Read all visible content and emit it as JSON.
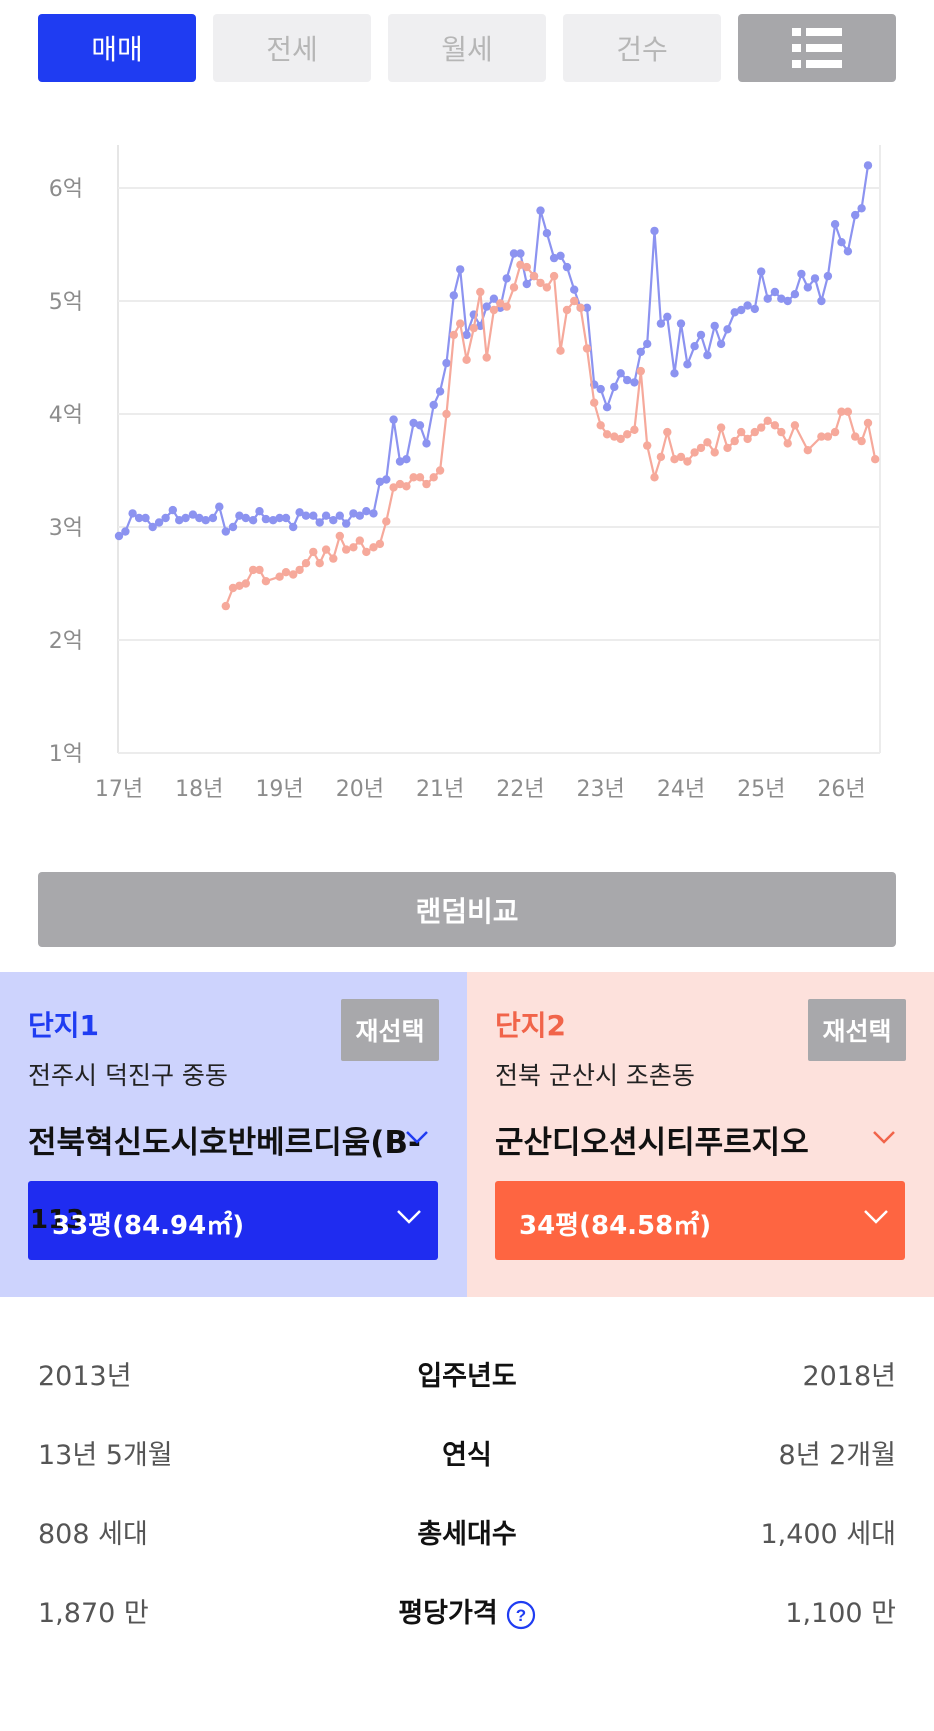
{
  "tabs": [
    {
      "label": "매매",
      "active": true
    },
    {
      "label": "전세",
      "active": false
    },
    {
      "label": "월세",
      "active": false
    },
    {
      "label": "건수",
      "active": false
    }
  ],
  "list_icon": "list-view-icon",
  "chart_data": {
    "type": "line",
    "title": "",
    "xlabel": "",
    "ylabel": "",
    "y_tick_labels": [
      "6억",
      "5억",
      "4억",
      "3억",
      "2억",
      "1억"
    ],
    "x_tick_labels": [
      "17년",
      "18년",
      "19년",
      "20년",
      "21년",
      "22년",
      "23년",
      "24년",
      "25년",
      "26년"
    ],
    "ylim": [
      1,
      6.2
    ],
    "grid": true,
    "series": [
      {
        "color": "#8c93f0",
        "points": [
          [
            17.0,
            2.92
          ],
          [
            17.08,
            2.96
          ],
          [
            17.17,
            3.12
          ],
          [
            17.25,
            3.08
          ],
          [
            17.33,
            3.08
          ],
          [
            17.42,
            3.0
          ],
          [
            17.5,
            3.04
          ],
          [
            17.58,
            3.08
          ],
          [
            17.67,
            3.15
          ],
          [
            17.75,
            3.06
          ],
          [
            17.83,
            3.08
          ],
          [
            17.92,
            3.11
          ],
          [
            18.0,
            3.08
          ],
          [
            18.08,
            3.06
          ],
          [
            18.17,
            3.08
          ],
          [
            18.25,
            3.18
          ],
          [
            18.33,
            2.96
          ],
          [
            18.42,
            3.0
          ],
          [
            18.5,
            3.1
          ],
          [
            18.58,
            3.08
          ],
          [
            18.67,
            3.06
          ],
          [
            18.75,
            3.14
          ],
          [
            18.83,
            3.07
          ],
          [
            18.92,
            3.06
          ],
          [
            19.0,
            3.08
          ],
          [
            19.08,
            3.08
          ],
          [
            19.17,
            3.0
          ],
          [
            19.25,
            3.13
          ],
          [
            19.33,
            3.1
          ],
          [
            19.42,
            3.1
          ],
          [
            19.5,
            3.04
          ],
          [
            19.58,
            3.1
          ],
          [
            19.67,
            3.06
          ],
          [
            19.75,
            3.1
          ],
          [
            19.83,
            3.03
          ],
          [
            19.92,
            3.12
          ],
          [
            20.0,
            3.1
          ],
          [
            20.08,
            3.14
          ],
          [
            20.17,
            3.12
          ],
          [
            20.25,
            3.4
          ],
          [
            20.33,
            3.42
          ],
          [
            20.42,
            3.95
          ],
          [
            20.5,
            3.58
          ],
          [
            20.58,
            3.6
          ],
          [
            20.67,
            3.92
          ],
          [
            20.75,
            3.9
          ],
          [
            20.83,
            3.74
          ],
          [
            20.92,
            4.08
          ],
          [
            21.0,
            4.2
          ],
          [
            21.08,
            4.45
          ],
          [
            21.17,
            5.05
          ],
          [
            21.25,
            5.28
          ],
          [
            21.33,
            4.7
          ],
          [
            21.42,
            4.88
          ],
          [
            21.5,
            4.78
          ],
          [
            21.58,
            4.95
          ],
          [
            21.67,
            5.02
          ],
          [
            21.75,
            4.94
          ],
          [
            21.83,
            5.2
          ],
          [
            21.92,
            5.42
          ],
          [
            22.0,
            5.42
          ],
          [
            22.08,
            5.15
          ],
          [
            22.17,
            5.22
          ],
          [
            22.25,
            5.8
          ],
          [
            22.33,
            5.6
          ],
          [
            22.42,
            5.38
          ],
          [
            22.5,
            5.4
          ],
          [
            22.58,
            5.3
          ],
          [
            22.67,
            5.1
          ],
          [
            22.75,
            4.94
          ],
          [
            22.83,
            4.94
          ],
          [
            22.92,
            4.26
          ],
          [
            23.0,
            4.22
          ],
          [
            23.08,
            4.06
          ],
          [
            23.17,
            4.24
          ],
          [
            23.25,
            4.36
          ],
          [
            23.33,
            4.3
          ],
          [
            23.42,
            4.28
          ],
          [
            23.5,
            4.55
          ],
          [
            23.58,
            4.62
          ],
          [
            23.67,
            5.62
          ],
          [
            23.75,
            4.8
          ],
          [
            23.83,
            4.86
          ],
          [
            23.92,
            4.36
          ],
          [
            24.0,
            4.8
          ],
          [
            24.08,
            4.44
          ],
          [
            24.17,
            4.6
          ],
          [
            24.25,
            4.7
          ],
          [
            24.33,
            4.52
          ],
          [
            24.42,
            4.78
          ],
          [
            24.5,
            4.62
          ],
          [
            24.58,
            4.75
          ],
          [
            24.67,
            4.9
          ],
          [
            24.75,
            4.92
          ],
          [
            24.83,
            4.96
          ],
          [
            24.92,
            4.93
          ],
          [
            25.0,
            5.26
          ],
          [
            25.08,
            5.02
          ],
          [
            25.17,
            5.08
          ],
          [
            25.25,
            5.02
          ],
          [
            25.33,
            5.0
          ],
          [
            25.42,
            5.06
          ],
          [
            25.5,
            5.24
          ],
          [
            25.58,
            5.12
          ],
          [
            25.67,
            5.2
          ],
          [
            25.75,
            5.0
          ],
          [
            25.83,
            5.22
          ],
          [
            25.92,
            5.68
          ],
          [
            26.0,
            5.52
          ],
          [
            26.08,
            5.44
          ],
          [
            26.17,
            5.76
          ],
          [
            26.25,
            5.82
          ],
          [
            26.33,
            6.2
          ]
        ]
      },
      {
        "color": "#f6a99b",
        "points": [
          [
            18.33,
            2.3
          ],
          [
            18.42,
            2.46
          ],
          [
            18.5,
            2.48
          ],
          [
            18.58,
            2.5
          ],
          [
            18.67,
            2.62
          ],
          [
            18.75,
            2.62
          ],
          [
            18.83,
            2.52
          ],
          [
            19.0,
            2.56
          ],
          [
            19.08,
            2.6
          ],
          [
            19.17,
            2.58
          ],
          [
            19.25,
            2.62
          ],
          [
            19.33,
            2.68
          ],
          [
            19.42,
            2.78
          ],
          [
            19.5,
            2.68
          ],
          [
            19.58,
            2.8
          ],
          [
            19.67,
            2.72
          ],
          [
            19.75,
            2.92
          ],
          [
            19.83,
            2.8
          ],
          [
            19.92,
            2.82
          ],
          [
            20.0,
            2.88
          ],
          [
            20.08,
            2.78
          ],
          [
            20.17,
            2.82
          ],
          [
            20.25,
            2.85
          ],
          [
            20.33,
            3.05
          ],
          [
            20.42,
            3.35
          ],
          [
            20.5,
            3.38
          ],
          [
            20.58,
            3.36
          ],
          [
            20.67,
            3.44
          ],
          [
            20.75,
            3.44
          ],
          [
            20.83,
            3.38
          ],
          [
            20.92,
            3.44
          ],
          [
            21.0,
            3.5
          ],
          [
            21.08,
            4.0
          ],
          [
            21.17,
            4.7
          ],
          [
            21.25,
            4.8
          ],
          [
            21.33,
            4.48
          ],
          [
            21.42,
            4.76
          ],
          [
            21.5,
            5.08
          ],
          [
            21.58,
            4.5
          ],
          [
            21.67,
            4.92
          ],
          [
            21.75,
            4.98
          ],
          [
            21.83,
            4.95
          ],
          [
            21.92,
            5.12
          ],
          [
            22.0,
            5.32
          ],
          [
            22.08,
            5.3
          ],
          [
            22.17,
            5.22
          ],
          [
            22.25,
            5.16
          ],
          [
            22.33,
            5.12
          ],
          [
            22.42,
            5.22
          ],
          [
            22.5,
            4.56
          ],
          [
            22.58,
            4.92
          ],
          [
            22.67,
            5.0
          ],
          [
            22.75,
            4.94
          ],
          [
            22.83,
            4.58
          ],
          [
            22.92,
            4.1
          ],
          [
            23.0,
            3.9
          ],
          [
            23.08,
            3.82
          ],
          [
            23.17,
            3.8
          ],
          [
            23.25,
            3.78
          ],
          [
            23.33,
            3.82
          ],
          [
            23.42,
            3.86
          ],
          [
            23.5,
            4.38
          ],
          [
            23.58,
            3.72
          ],
          [
            23.67,
            3.44
          ],
          [
            23.75,
            3.62
          ],
          [
            23.83,
            3.84
          ],
          [
            23.92,
            3.6
          ],
          [
            24.0,
            3.62
          ],
          [
            24.08,
            3.58
          ],
          [
            24.17,
            3.66
          ],
          [
            24.25,
            3.7
          ],
          [
            24.33,
            3.75
          ],
          [
            24.42,
            3.66
          ],
          [
            24.5,
            3.88
          ],
          [
            24.58,
            3.7
          ],
          [
            24.67,
            3.76
          ],
          [
            24.75,
            3.84
          ],
          [
            24.83,
            3.78
          ],
          [
            24.92,
            3.84
          ],
          [
            25.0,
            3.88
          ],
          [
            25.08,
            3.94
          ],
          [
            25.17,
            3.9
          ],
          [
            25.25,
            3.84
          ],
          [
            25.33,
            3.74
          ],
          [
            25.42,
            3.9
          ],
          [
            25.58,
            3.68
          ],
          [
            25.75,
            3.8
          ],
          [
            25.83,
            3.8
          ],
          [
            25.92,
            3.84
          ],
          [
            26.0,
            4.02
          ],
          [
            26.08,
            4.02
          ],
          [
            26.17,
            3.8
          ],
          [
            26.25,
            3.76
          ],
          [
            26.33,
            3.92
          ],
          [
            26.42,
            3.6
          ]
        ]
      }
    ]
  },
  "random_compare_label": "랜덤비교",
  "complex1": {
    "label": "단지1",
    "reselect": "재선택",
    "address": "전주시 덕진구 중동",
    "name": "전북혁신도시호반베르디움(B-",
    "overlap_text": "113",
    "size": "33평(84.94㎡)",
    "accent": "#1f2cf0"
  },
  "complex2": {
    "label": "단지2",
    "reselect": "재선택",
    "address": "전북 군산시 조촌동",
    "name": "군산디오션시티푸르지오",
    "size": "34평(84.58㎡)",
    "accent": "#fe6541"
  },
  "info": [
    {
      "left": "2013년",
      "label": "입주년도",
      "right": "2018년"
    },
    {
      "left": "13년 5개월",
      "label": "연식",
      "right": "8년 2개월"
    },
    {
      "left": "808 세대",
      "label": "총세대수",
      "right": "1,400 세대"
    },
    {
      "left": "1,870 만",
      "label": "평당가격",
      "right": "1,100 만",
      "icon": "help-icon"
    }
  ]
}
